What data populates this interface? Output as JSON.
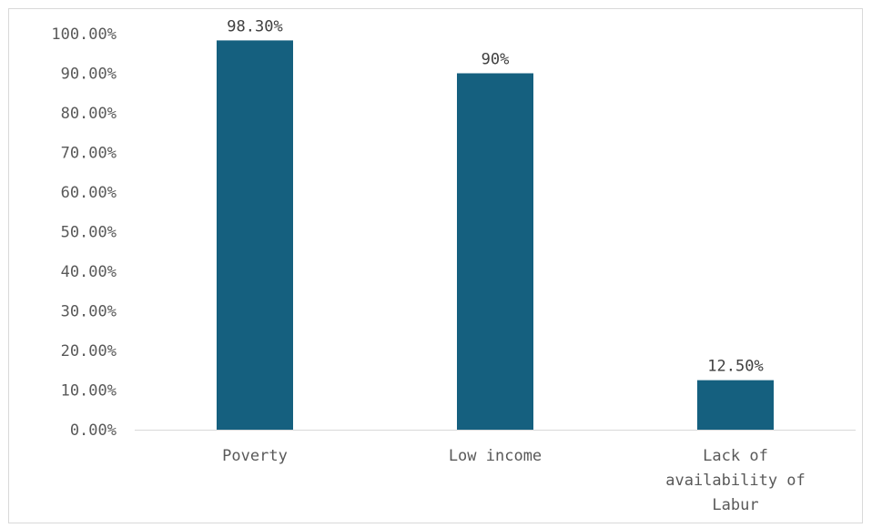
{
  "chart_data": {
    "type": "bar",
    "categories": [
      "Poverty",
      "Low income",
      "Lack of availability of Labur"
    ],
    "category_lines": [
      [
        "Poverty"
      ],
      [
        "Low income"
      ],
      [
        "Lack of",
        "availability of",
        "Labur"
      ]
    ],
    "values": [
      98.3,
      90,
      12.5
    ],
    "data_labels": [
      "98.30%",
      "90%",
      "12.50%"
    ],
    "ylim": [
      0,
      100
    ],
    "yticks": [
      "0.00%",
      "10.00%",
      "20.00%",
      "30.00%",
      "40.00%",
      "50.00%",
      "60.00%",
      "70.00%",
      "80.00%",
      "90.00%",
      "100.00%"
    ],
    "bar_color": "#15607f",
    "grid": false,
    "title": "",
    "xlabel": "",
    "ylabel": ""
  }
}
